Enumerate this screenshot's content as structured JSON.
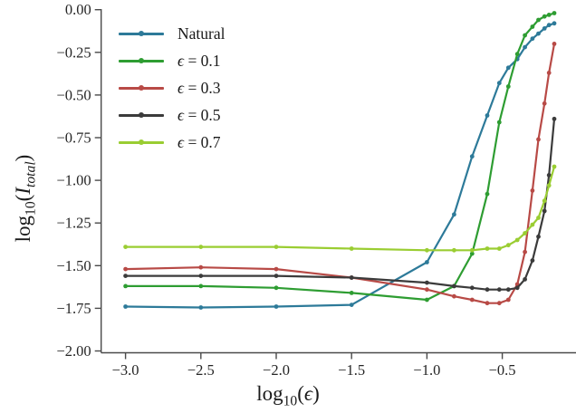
{
  "chart_data": {
    "type": "line",
    "title": "",
    "xlabel": "log10(ϵ)",
    "ylabel": "log10(I_total)",
    "grid": false,
    "background": "#ffffff",
    "legend_position": "upper left",
    "xlim": [
      -3.17,
      -0.01
    ],
    "ylim": [
      -2.0,
      0.0
    ],
    "x_tick_values": [
      -3.0,
      -2.5,
      -2.0,
      -1.5,
      -1.0,
      -0.5
    ],
    "x_tick_labels": [
      "−3.0",
      "−2.5",
      "−2.0",
      "−1.5",
      "−1.0",
      "−0.5"
    ],
    "y_tick_values": [
      0.0,
      -0.25,
      -0.5,
      -0.75,
      -1.0,
      -1.25,
      -1.5,
      -1.75,
      -2.0
    ],
    "y_tick_labels": [
      "0.00",
      "−0.25",
      "−0.50",
      "−0.75",
      "−1.00",
      "−1.25",
      "−1.50",
      "−1.75",
      "−2.00"
    ],
    "x": [
      -3.0,
      -2.5,
      -2.0,
      -1.5,
      -1.0,
      -0.82,
      -0.7,
      -0.6,
      -0.52,
      -0.46,
      -0.4,
      -0.35,
      -0.3,
      -0.26,
      -0.22,
      -0.19,
      -0.155
    ],
    "series": [
      {
        "name": "Natural",
        "color": "#2d7a99",
        "values": [
          -1.74,
          -1.745,
          -1.74,
          -1.73,
          -1.48,
          -1.2,
          -0.86,
          -0.62,
          -0.43,
          -0.34,
          -0.29,
          -0.22,
          -0.17,
          -0.14,
          -0.11,
          -0.09,
          -0.08
        ]
      },
      {
        "name": "ϵ = 0.1",
        "color": "#2e9d32",
        "values": [
          -1.62,
          -1.62,
          -1.63,
          -1.66,
          -1.7,
          -1.62,
          -1.43,
          -1.08,
          -0.66,
          -0.45,
          -0.26,
          -0.15,
          -0.1,
          -0.06,
          -0.04,
          -0.03,
          -0.02
        ]
      },
      {
        "name": "ϵ = 0.3",
        "color": "#b84a46",
        "values": [
          -1.52,
          -1.51,
          -1.52,
          -1.57,
          -1.64,
          -1.68,
          -1.7,
          -1.72,
          -1.72,
          -1.7,
          -1.61,
          -1.42,
          -1.06,
          -0.76,
          -0.55,
          -0.37,
          -0.2
        ]
      },
      {
        "name": "ϵ = 0.5",
        "color": "#3b3b3b",
        "values": [
          -1.56,
          -1.56,
          -1.56,
          -1.57,
          -1.6,
          -1.62,
          -1.63,
          -1.64,
          -1.64,
          -1.64,
          -1.63,
          -1.58,
          -1.47,
          -1.33,
          -1.18,
          -0.97,
          -0.64
        ]
      },
      {
        "name": "ϵ = 0.7",
        "color": "#9acd32",
        "values": [
          -1.39,
          -1.39,
          -1.39,
          -1.4,
          -1.41,
          -1.41,
          -1.41,
          -1.4,
          -1.4,
          -1.38,
          -1.35,
          -1.31,
          -1.26,
          -1.22,
          -1.12,
          -1.03,
          -0.92
        ]
      }
    ]
  },
  "labels": {
    "x_log": "log",
    "x_sub": "10",
    "x_open": "(",
    "x_var": "ϵ",
    "x_close": ")",
    "y_log": "log",
    "y_sub": "10",
    "y_open": "(",
    "y_var": "I",
    "y_var_sub": "total",
    "y_close": ")"
  },
  "legend": {
    "items": [
      {
        "sym": "",
        "text": "Natural"
      },
      {
        "sym": "ϵ",
        "text": " = 0.1"
      },
      {
        "sym": "ϵ",
        "text": " = 0.3"
      },
      {
        "sym": "ϵ",
        "text": " = 0.5"
      },
      {
        "sym": "ϵ",
        "text": " = 0.7"
      }
    ]
  },
  "style": {
    "spine_color": "#4a4a4a",
    "tick_label_color": "#262626"
  }
}
